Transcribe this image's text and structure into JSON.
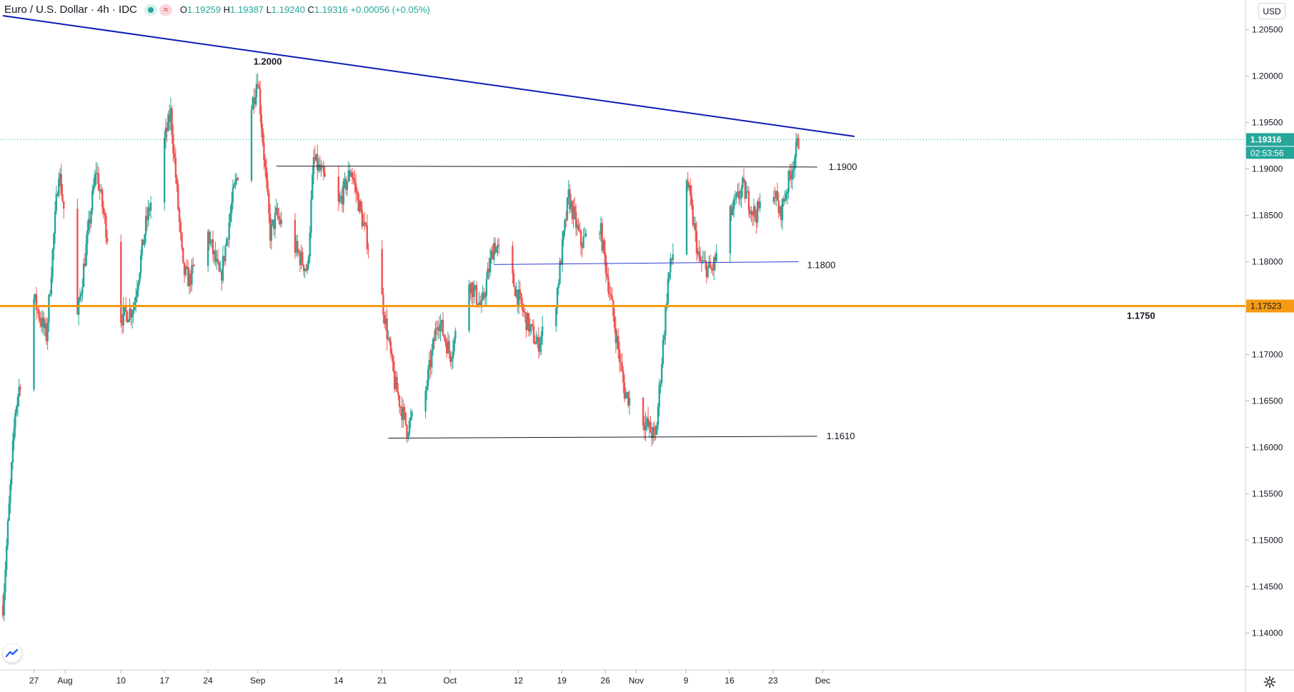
{
  "header": {
    "symbol": "Euro / U.S. Dollar · 4h · IDC",
    "open_label": "O",
    "open": "1.19259",
    "high_label": "H",
    "high": "1.19387",
    "low_label": "L",
    "low": "1.19240",
    "close_label": "C",
    "close": "1.19316",
    "change": "+0.00056 (+0.05%)"
  },
  "currency_button": "USD",
  "icons": {
    "market_status": "green-dot-icon",
    "settings": "gear-icon",
    "logo": "tradingview-logo-icon"
  },
  "colors": {
    "up": "#26a69a",
    "down": "#ef5350",
    "trendline": "#0d1bb6",
    "support": "#f59a12",
    "last_price": "#26a69a"
  },
  "chart_data": {
    "type": "candlestick",
    "title": "Euro / U.S. Dollar · 4h · IDC",
    "x_tick_labels": [
      "27",
      "Aug",
      "10",
      "17",
      "24",
      "Sep",
      "14",
      "21",
      "Oct",
      "12",
      "19",
      "26",
      "Nov",
      "9",
      "16",
      "23",
      "Dec"
    ],
    "y_ticks": [
      "1.20500",
      "1.20000",
      "1.19500",
      "1.19000",
      "1.18500",
      "1.18000",
      "1.17500",
      "1.17000",
      "1.16500",
      "1.16000",
      "1.15500",
      "1.15000",
      "1.14500",
      "1.14000"
    ],
    "ylim": [
      1.1368,
      1.2068
    ],
    "last_price": "1.19316",
    "countdown": "02:53:56",
    "support_price": "1.17523",
    "swing_path": [
      [
        "Jul 22",
        1.143
      ],
      [
        "Jul 24",
        1.164
      ],
      [
        "Jul 27",
        1.176
      ],
      [
        "Jul 29",
        1.172
      ],
      [
        "Jul 31",
        1.19
      ],
      [
        "Aug 3",
        1.174
      ],
      [
        "Aug 6",
        1.19
      ],
      [
        "Aug 10",
        1.174
      ],
      [
        "Aug 12",
        1.175
      ],
      [
        "Aug 14",
        1.184
      ],
      [
        "Aug 18",
        1.196
      ],
      [
        "Aug 20",
        1.179
      ],
      [
        "Aug 21",
        1.178
      ],
      [
        "Aug 24",
        1.183
      ],
      [
        "Aug 26",
        1.178
      ],
      [
        "Aug 28",
        1.187
      ],
      [
        "Sep 1",
        1.2
      ],
      [
        "Sep 3",
        1.183
      ],
      [
        "Sep 4",
        1.185
      ],
      [
        "Sep 7",
        1.1815
      ],
      [
        "Sep 9",
        1.179
      ],
      [
        "Sep 10",
        1.191
      ],
      [
        "Sep 14",
        1.186
      ],
      [
        "Sep 16",
        1.19
      ],
      [
        "Sep 18",
        1.184
      ],
      [
        "Sep 21",
        1.176
      ],
      [
        "Sep 23",
        1.167
      ],
      [
        "Sep 25",
        1.162
      ],
      [
        "Sep 28",
        1.166
      ],
      [
        "Sep 30",
        1.174
      ],
      [
        "Oct 2",
        1.17
      ],
      [
        "Oct 5",
        1.178
      ],
      [
        "Oct 7",
        1.175
      ],
      [
        "Oct 9",
        1.182
      ],
      [
        "Oct 12",
        1.178
      ],
      [
        "Oct 14",
        1.174
      ],
      [
        "Oct 16",
        1.171
      ],
      [
        "Oct 19",
        1.176
      ],
      [
        "Oct 21",
        1.187
      ],
      [
        "Oct 23",
        1.182
      ],
      [
        "Oct 26",
        1.184
      ],
      [
        "Oct 28",
        1.175
      ],
      [
        "Oct 30",
        1.166
      ],
      [
        "Nov 2",
        1.163
      ],
      [
        "Nov 4",
        1.161
      ],
      [
        "Nov 6",
        1.178
      ],
      [
        "Nov 9",
        1.189
      ],
      [
        "Nov 11",
        1.18
      ],
      [
        "Nov 13",
        1.179
      ],
      [
        "Nov 16",
        1.185
      ],
      [
        "Nov 18",
        1.188
      ],
      [
        "Nov 20",
        1.185
      ],
      [
        "Nov 23",
        1.188
      ],
      [
        "Nov 24",
        1.185
      ],
      [
        "Nov 27",
        1.193
      ]
    ],
    "lines": [
      {
        "name": "falling-trendline",
        "from": [
          "Jul 22",
          1.2065
        ],
        "to": [
          "Dec 6",
          1.1935
        ]
      },
      {
        "name": "resistance-1.1900",
        "from": [
          "Sep 4",
          1.1903
        ],
        "to": [
          "Nov 30",
          1.1902
        ],
        "label": "1.1900"
      },
      {
        "name": "level-1.1800",
        "from": [
          "Oct 9",
          1.1797
        ],
        "to": [
          "Nov 27",
          1.18
        ],
        "label": "1.1800"
      },
      {
        "name": "support-1.1750",
        "value": 1.17523,
        "label": "1.1750"
      },
      {
        "name": "support-1.1610",
        "from": [
          "Sep 22",
          1.161
        ],
        "to": [
          "Nov 30",
          1.1612
        ],
        "label": "1.1610"
      }
    ],
    "annotations": [
      {
        "text": "1.2000",
        "at": [
          "Sep 1",
          1.2
        ]
      }
    ]
  }
}
